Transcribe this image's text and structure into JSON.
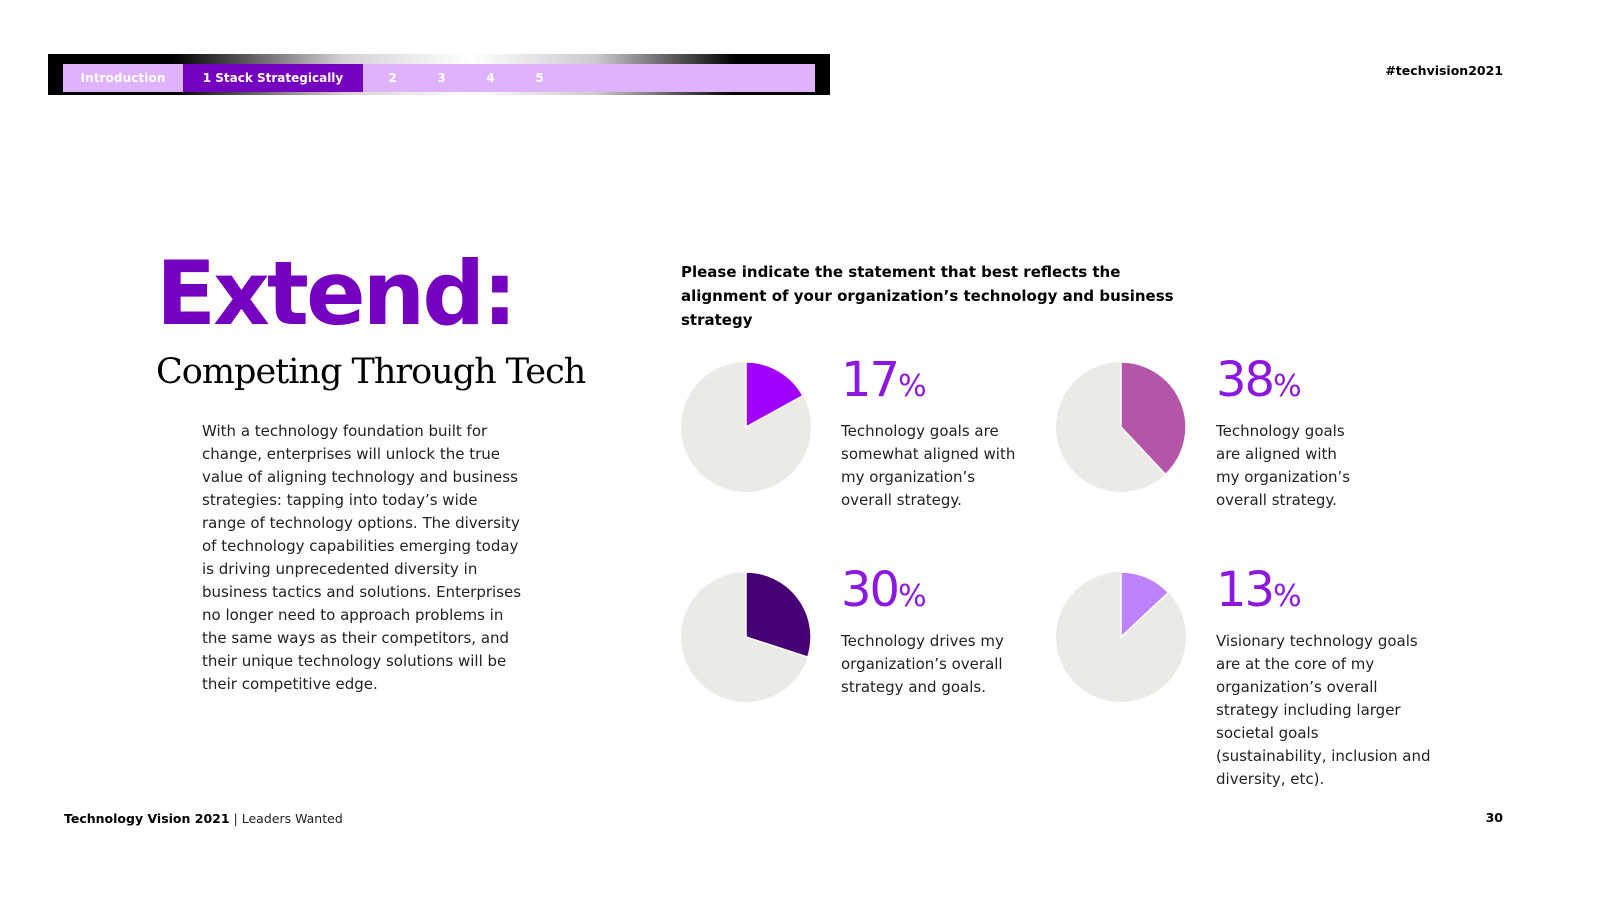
{
  "nav": {
    "intro": "Introduction",
    "active": "1 Stack Strategically",
    "numbers": [
      "2",
      "3",
      "4",
      "5"
    ]
  },
  "hashtag": "#techvision2021",
  "headline": "Extend:",
  "subhead": "Competing Through Tech",
  "body": "With a technology foundation built for change, enterprises will unlock the true value of aligning technology and business strategies: tapping into today’s wide range of technology options. The diversity of technology capabilities emerging today is driving unprecedented diversity in business tactics and solutions. Enterprises no longer need to approach problems in the same ways as their competitors, and their unique technology solutions will be their competitive edge.",
  "question": "Please indicate the statement that best reflects the alignment of your organization’s technology and business strategy",
  "chart_data": {
    "type": "pie",
    "title": "Please indicate the statement that best reflects the alignment of your organization’s technology and business strategy",
    "background_color": "#ebeae6",
    "slices": [
      {
        "value": 17,
        "pct_text": "17",
        "unit": "%",
        "label": "Technology goals are somewhat aligned with my organization’s overall strategy.",
        "color": "#a100ff"
      },
      {
        "value": 38,
        "pct_text": "38",
        "unit": "%",
        "label": "Technology goals are aligned with my organization’s overall strategy.",
        "color": "#b455aa"
      },
      {
        "value": 30,
        "pct_text": "30",
        "unit": "%",
        "label": "Technology drives my organization’s overall strategy and goals.",
        "color": "#460073"
      },
      {
        "value": 13,
        "pct_text": "13",
        "unit": "%",
        "label": "Visionary technology goals are at the core of my organization’s overall strategy including larger societal goals (sustainability, inclusion and diversity, etc).",
        "color": "#be82ff"
      }
    ]
  },
  "footer": {
    "brand": "Technology Vision 2021",
    "separator": " | ",
    "tagline": "Leaders Wanted"
  },
  "page_number": "30"
}
